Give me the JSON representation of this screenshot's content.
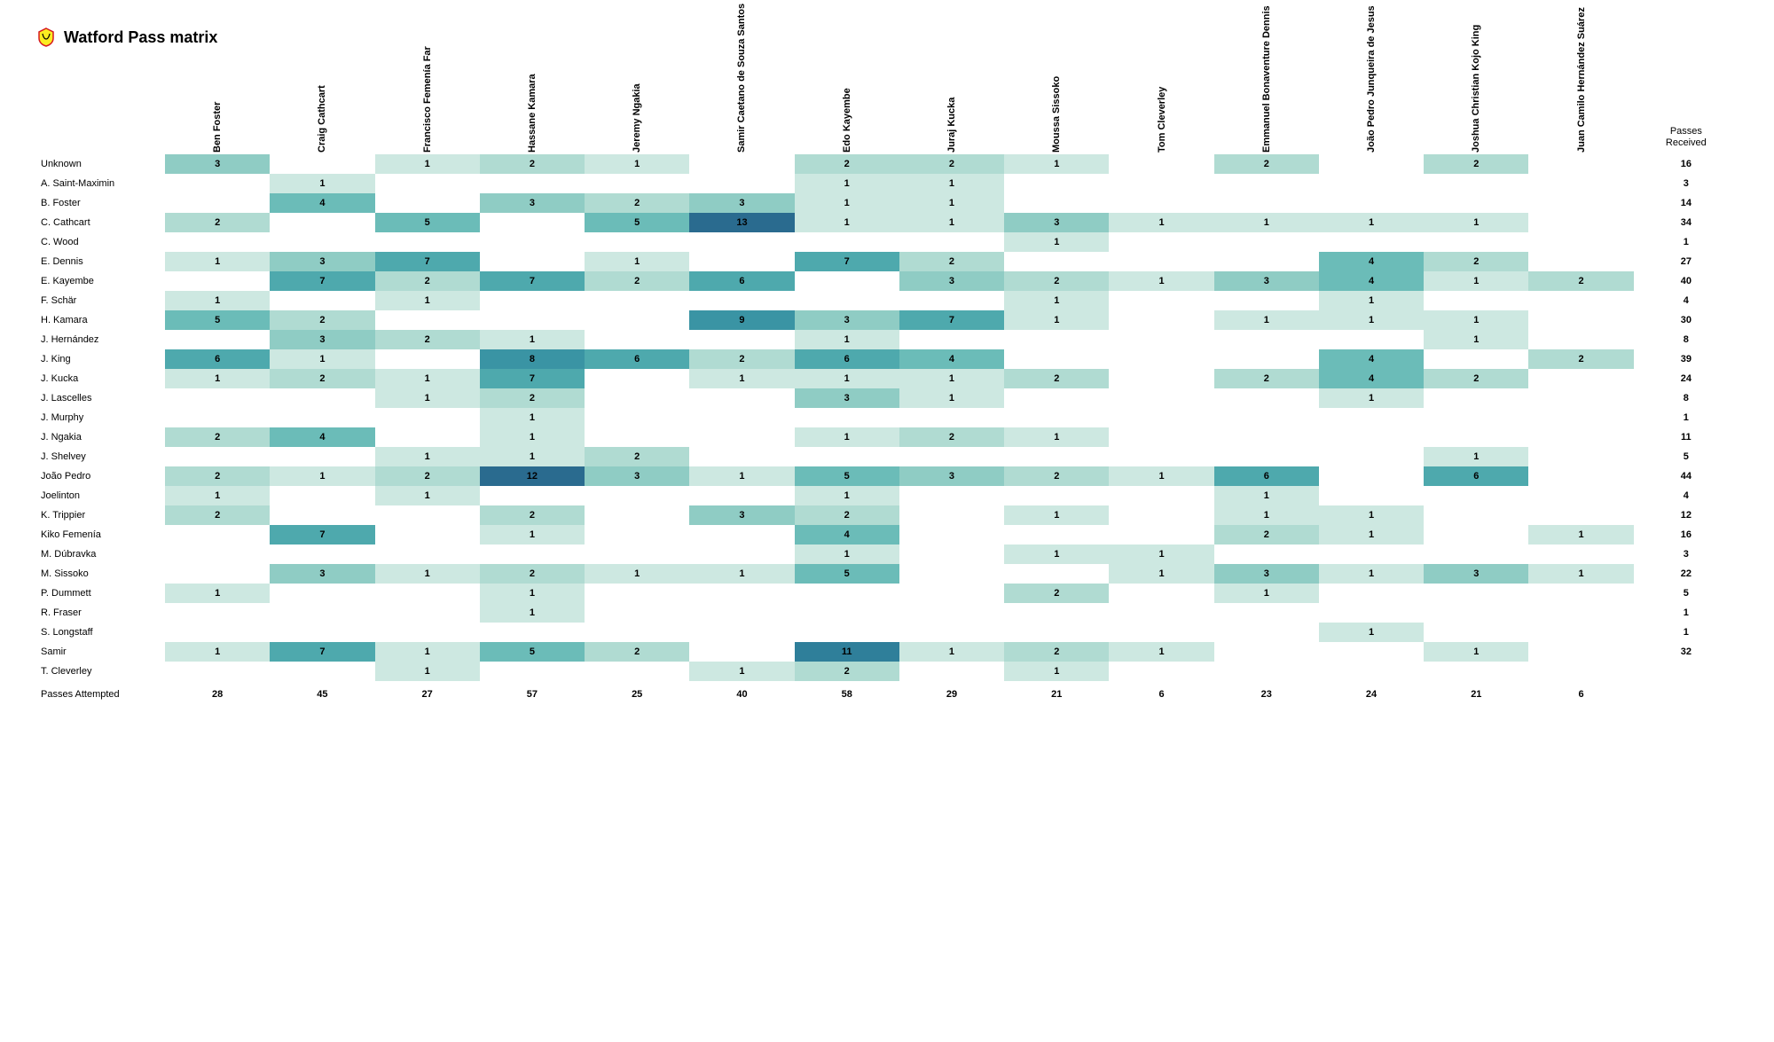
{
  "title": "Watford Pass matrix",
  "received_header": "Passes Received",
  "attempted_label": "Passes Attempted",
  "heatmap_colors": {
    "empty": "#ffffff",
    "c1": "#cde8e1",
    "c2": "#b0dbd2",
    "c3": "#8fccc4",
    "c4": "#6bbcb8",
    "c5": "#4ea9ad",
    "c6": "#3a94a4",
    "c7": "#2f7f9a",
    "c8": "#2a6b8f"
  },
  "columns": [
    "Ben Foster",
    "Craig Cathcart",
    "Francisco Femenía Far",
    "Hassane Kamara",
    "Jeremy Ngakia",
    "Samir Caetano de Souza Santos",
    "Edo Kayembe",
    "Juraj Kucka",
    "Moussa Sissoko",
    "Tom Cleverley",
    "Emmanuel Bonaventure Dennis",
    "João Pedro Junqueira de Jesus",
    "Joshua Christian Kojo King",
    "Juan Camilo Hernández Suárez"
  ],
  "rows": [
    {
      "label": "Unknown",
      "cells": [
        3,
        null,
        1,
        2,
        1,
        null,
        2,
        2,
        1,
        null,
        2,
        null,
        2,
        null
      ],
      "total": 16
    },
    {
      "label": "A. Saint-Maximin",
      "cells": [
        null,
        1,
        null,
        null,
        null,
        null,
        1,
        1,
        null,
        null,
        null,
        null,
        null,
        null
      ],
      "total": 3
    },
    {
      "label": "B. Foster",
      "cells": [
        null,
        4,
        null,
        3,
        2,
        3,
        1,
        1,
        null,
        null,
        null,
        null,
        null,
        null
      ],
      "total": 14
    },
    {
      "label": "C. Cathcart",
      "cells": [
        2,
        null,
        5,
        null,
        5,
        13,
        1,
        1,
        3,
        1,
        1,
        1,
        1,
        null
      ],
      "total": 34
    },
    {
      "label": "C. Wood",
      "cells": [
        null,
        null,
        null,
        null,
        null,
        null,
        null,
        null,
        1,
        null,
        null,
        null,
        null,
        null
      ],
      "total": 1
    },
    {
      "label": "E. Dennis",
      "cells": [
        1,
        3,
        7,
        null,
        1,
        null,
        7,
        2,
        null,
        null,
        null,
        4,
        2,
        null
      ],
      "total": 27
    },
    {
      "label": "E. Kayembe",
      "cells": [
        null,
        7,
        2,
        7,
        2,
        6,
        null,
        3,
        2,
        1,
        3,
        4,
        1,
        2
      ],
      "total": 40
    },
    {
      "label": "F. Schär",
      "cells": [
        1,
        null,
        1,
        null,
        null,
        null,
        null,
        null,
        1,
        null,
        null,
        1,
        null,
        null
      ],
      "total": 4
    },
    {
      "label": "H. Kamara",
      "cells": [
        5,
        2,
        null,
        null,
        null,
        9,
        3,
        7,
        1,
        null,
        1,
        1,
        1,
        null
      ],
      "total": 30
    },
    {
      "label": "J. Hernández",
      "cells": [
        null,
        3,
        2,
        1,
        null,
        null,
        1,
        null,
        null,
        null,
        null,
        null,
        1,
        null
      ],
      "total": 8
    },
    {
      "label": "J. King",
      "cells": [
        6,
        1,
        null,
        8,
        6,
        2,
        6,
        4,
        null,
        null,
        null,
        4,
        null,
        2
      ],
      "total": 39
    },
    {
      "label": "J. Kucka",
      "cells": [
        1,
        2,
        1,
        7,
        null,
        1,
        1,
        1,
        2,
        null,
        2,
        4,
        2,
        null
      ],
      "total": 24
    },
    {
      "label": "J. Lascelles",
      "cells": [
        null,
        null,
        1,
        2,
        null,
        null,
        3,
        1,
        null,
        null,
        null,
        1,
        null,
        null
      ],
      "total": 8
    },
    {
      "label": "J. Murphy",
      "cells": [
        null,
        null,
        null,
        1,
        null,
        null,
        null,
        null,
        null,
        null,
        null,
        null,
        null,
        null
      ],
      "total": 1
    },
    {
      "label": "J. Ngakia",
      "cells": [
        2,
        4,
        null,
        1,
        null,
        null,
        1,
        2,
        1,
        null,
        null,
        null,
        null,
        null
      ],
      "total": 11
    },
    {
      "label": "J. Shelvey",
      "cells": [
        null,
        null,
        1,
        1,
        2,
        null,
        null,
        null,
        null,
        null,
        null,
        null,
        1,
        null
      ],
      "total": 5
    },
    {
      "label": "João Pedro",
      "cells": [
        2,
        1,
        2,
        12,
        3,
        1,
        5,
        3,
        2,
        1,
        6,
        null,
        6,
        null
      ],
      "total": 44
    },
    {
      "label": "Joelinton",
      "cells": [
        1,
        null,
        1,
        null,
        null,
        null,
        1,
        null,
        null,
        null,
        1,
        null,
        null,
        null
      ],
      "total": 4
    },
    {
      "label": "K. Trippier",
      "cells": [
        2,
        null,
        null,
        2,
        null,
        3,
        2,
        null,
        1,
        null,
        1,
        1,
        null,
        null
      ],
      "total": 12
    },
    {
      "label": "Kiko Femenía",
      "cells": [
        null,
        7,
        null,
        1,
        null,
        null,
        4,
        null,
        null,
        null,
        2,
        1,
        null,
        1
      ],
      "total": 16
    },
    {
      "label": "M. Dúbravka",
      "cells": [
        null,
        null,
        null,
        null,
        null,
        null,
        1,
        null,
        1,
        1,
        null,
        null,
        null,
        null
      ],
      "total": 3
    },
    {
      "label": "M. Sissoko",
      "cells": [
        null,
        3,
        1,
        2,
        1,
        1,
        5,
        null,
        null,
        1,
        3,
        1,
        3,
        1
      ],
      "total": 22
    },
    {
      "label": "P. Dummett",
      "cells": [
        1,
        null,
        null,
        1,
        null,
        null,
        null,
        null,
        2,
        null,
        1,
        null,
        null,
        null
      ],
      "total": 5
    },
    {
      "label": "R. Fraser",
      "cells": [
        null,
        null,
        null,
        1,
        null,
        null,
        null,
        null,
        null,
        null,
        null,
        null,
        null,
        null
      ],
      "total": 1
    },
    {
      "label": "S. Longstaff",
      "cells": [
        null,
        null,
        null,
        null,
        null,
        null,
        null,
        null,
        null,
        null,
        null,
        1,
        null,
        null
      ],
      "total": 1
    },
    {
      "label": "Samir",
      "cells": [
        1,
        7,
        1,
        5,
        2,
        null,
        11,
        1,
        2,
        1,
        null,
        null,
        1,
        null
      ],
      "total": 32
    },
    {
      "label": "T. Cleverley",
      "cells": [
        null,
        null,
        1,
        null,
        null,
        1,
        2,
        null,
        1,
        null,
        null,
        null,
        null,
        null
      ],
      "total": null
    }
  ],
  "footer": [
    28,
    45,
    27,
    57,
    25,
    40,
    58,
    29,
    21,
    6,
    23,
    24,
    21,
    6
  ]
}
